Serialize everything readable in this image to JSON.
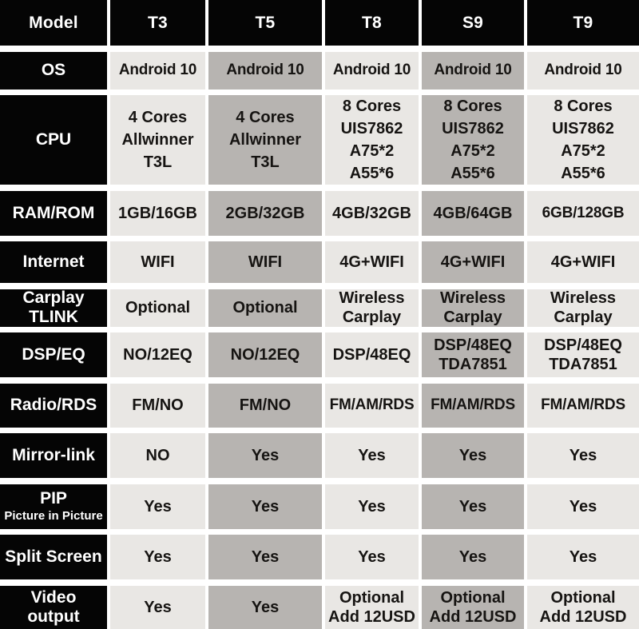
{
  "table": {
    "columns": [
      "Model",
      "T3",
      "T5",
      "T8",
      "S9",
      "T9"
    ],
    "column_shading": [
      "light",
      "dark",
      "light",
      "dark",
      "light"
    ],
    "rows": [
      {
        "label": "OS",
        "cells": [
          "Android 10",
          "Android 10",
          "Android 10",
          "Android 10",
          "Android 10"
        ]
      },
      {
        "label": "CPU",
        "cells": [
          "4 Cores\nAllwinner\nT3L",
          "4 Cores\nAllwinner\nT3L",
          "8 Cores\nUIS7862\nA75*2\nA55*6",
          "8 Cores\nUIS7862\nA75*2\nA55*6",
          "8 Cores\nUIS7862\nA75*2\nA55*6"
        ]
      },
      {
        "label": "RAM/ROM",
        "cells": [
          "1GB/16GB",
          "2GB/32GB",
          "4GB/32GB",
          "4GB/64GB",
          "6GB/128GB"
        ]
      },
      {
        "label": "Internet",
        "cells": [
          "WIFI",
          "WIFI",
          "4G+WIFI",
          "4G+WIFI",
          "4G+WIFI"
        ]
      },
      {
        "label": "Carplay\nTLINK",
        "cells": [
          "Optional",
          "Optional",
          "Wireless\nCarplay",
          "Wireless\nCarplay",
          "Wireless\nCarplay"
        ]
      },
      {
        "label": "DSP/EQ",
        "cells": [
          "NO/12EQ",
          "NO/12EQ",
          "DSP/48EQ",
          "DSP/48EQ\nTDA7851",
          "DSP/48EQ\nTDA7851"
        ]
      },
      {
        "label": "Radio/RDS",
        "cells": [
          "FM/NO",
          "FM/NO",
          "FM/AM/RDS",
          "FM/AM/RDS",
          "FM/AM/RDS"
        ]
      },
      {
        "label": "Mirror-link",
        "cells": [
          "NO",
          "Yes",
          "Yes",
          "Yes",
          "Yes"
        ]
      },
      {
        "label": "PIP",
        "sublabel": "Picture in Picture",
        "cells": [
          "Yes",
          "Yes",
          "Yes",
          "Yes",
          "Yes"
        ]
      },
      {
        "label": "Split Screen",
        "cells": [
          "Yes",
          "Yes",
          "Yes",
          "Yes",
          "Yes"
        ]
      },
      {
        "label": "Video\noutput",
        "cells": [
          "Yes",
          "Yes",
          "Optional\nAdd 12USD",
          "Optional\nAdd 12USD",
          "Optional\nAdd 12USD"
        ]
      }
    ]
  },
  "colors": {
    "header_bg": "#050505",
    "header_text": "#ffffff",
    "light_cell_bg": "#e9e7e4",
    "dark_cell_bg": "#b7b4b1",
    "cell_text": "#161412",
    "grid_gap": "#ffffff"
  }
}
